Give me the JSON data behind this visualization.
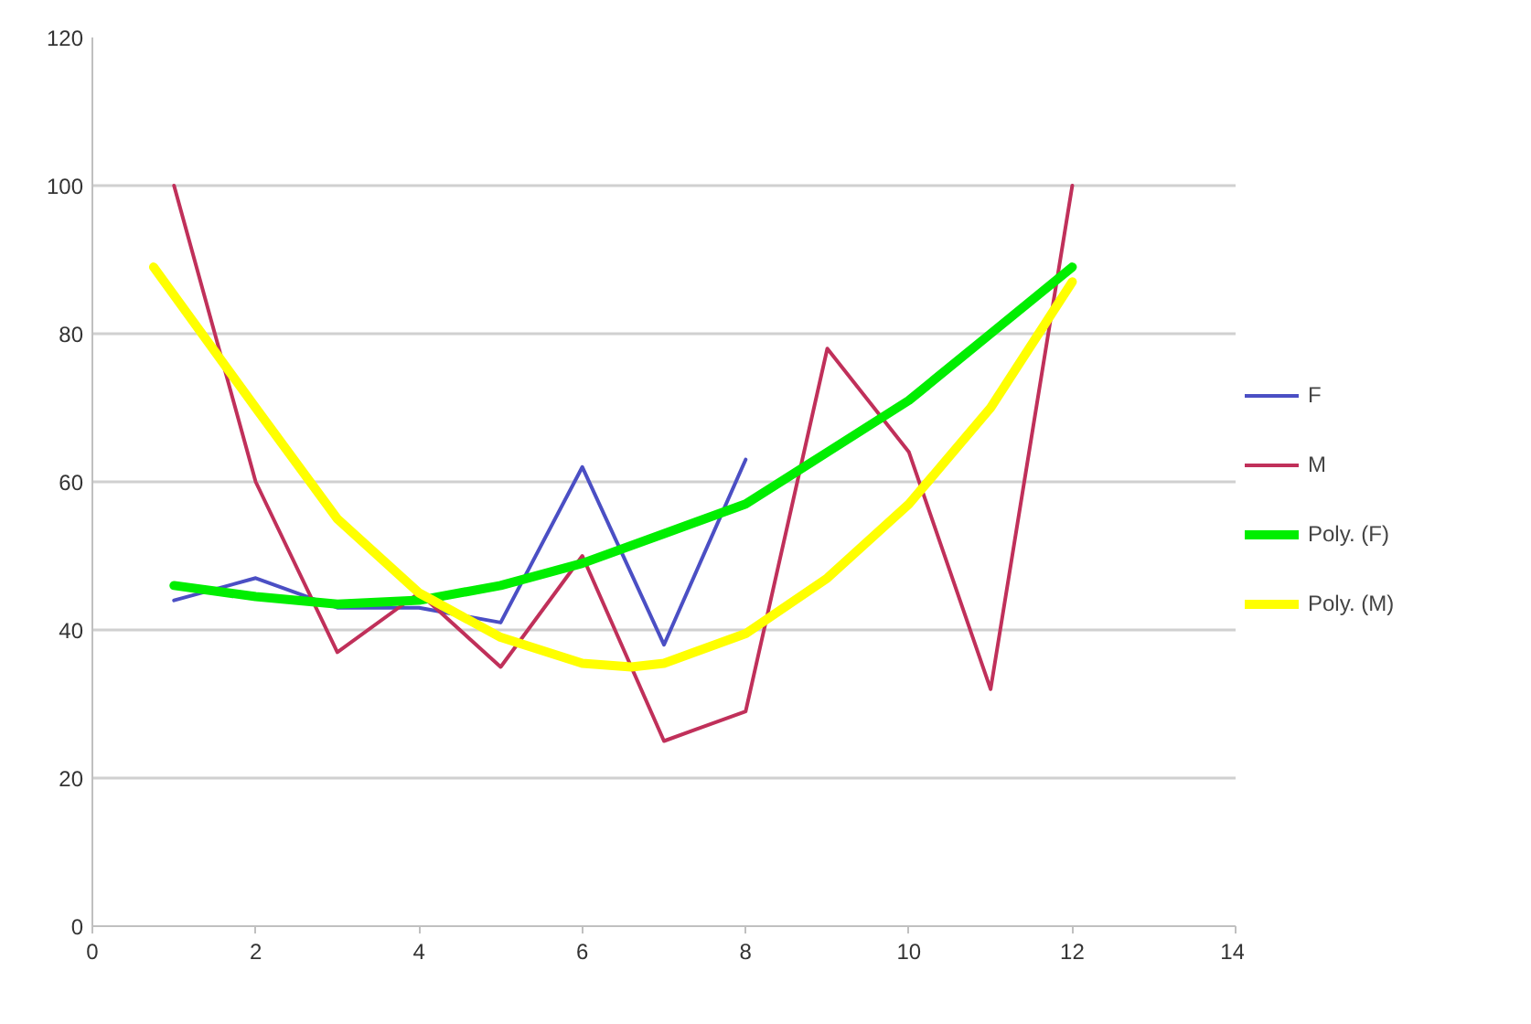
{
  "chart_data": {
    "type": "line",
    "xlim": [
      0,
      14
    ],
    "xticks": [
      0,
      2,
      4,
      6,
      8,
      10,
      12,
      14
    ],
    "ylim": [
      0,
      120
    ],
    "yticks": [
      0,
      20,
      40,
      60,
      80,
      100,
      120
    ],
    "grid": "y",
    "legend": "right",
    "marker": "none",
    "line_style": "solid",
    "series": [
      {
        "name": "F",
        "color": "#4b4fc4",
        "x": [
          1,
          2,
          3,
          4,
          5,
          6,
          7,
          8
        ],
        "values": [
          44,
          47,
          43,
          43,
          41,
          62,
          38,
          63
        ]
      },
      {
        "name": "M",
        "color": "#c0305a",
        "x": [
          1,
          2,
          3,
          4,
          5,
          6,
          7,
          8,
          9,
          10,
          11,
          12
        ],
        "values": [
          100,
          60,
          37,
          45,
          35,
          50,
          25,
          29,
          78,
          64,
          32,
          100
        ]
      },
      {
        "name": "Poly. (F)",
        "color": "#00ee00",
        "x": [
          1,
          2,
          3,
          4,
          5,
          6,
          7,
          8,
          9,
          10,
          11,
          12
        ],
        "values": [
          46,
          44.5,
          43.5,
          44,
          46,
          49,
          53,
          57,
          64,
          71,
          80,
          89
        ]
      },
      {
        "name": "Poly. (M)",
        "color": "#ffff00",
        "x": [
          0.75,
          2,
          3,
          4,
          5,
          6,
          6.6,
          7,
          8,
          9,
          10,
          11,
          12
        ],
        "values": [
          89,
          70,
          55,
          45,
          39,
          35.5,
          35,
          35.5,
          39.5,
          47,
          57,
          70,
          87
        ]
      }
    ]
  }
}
